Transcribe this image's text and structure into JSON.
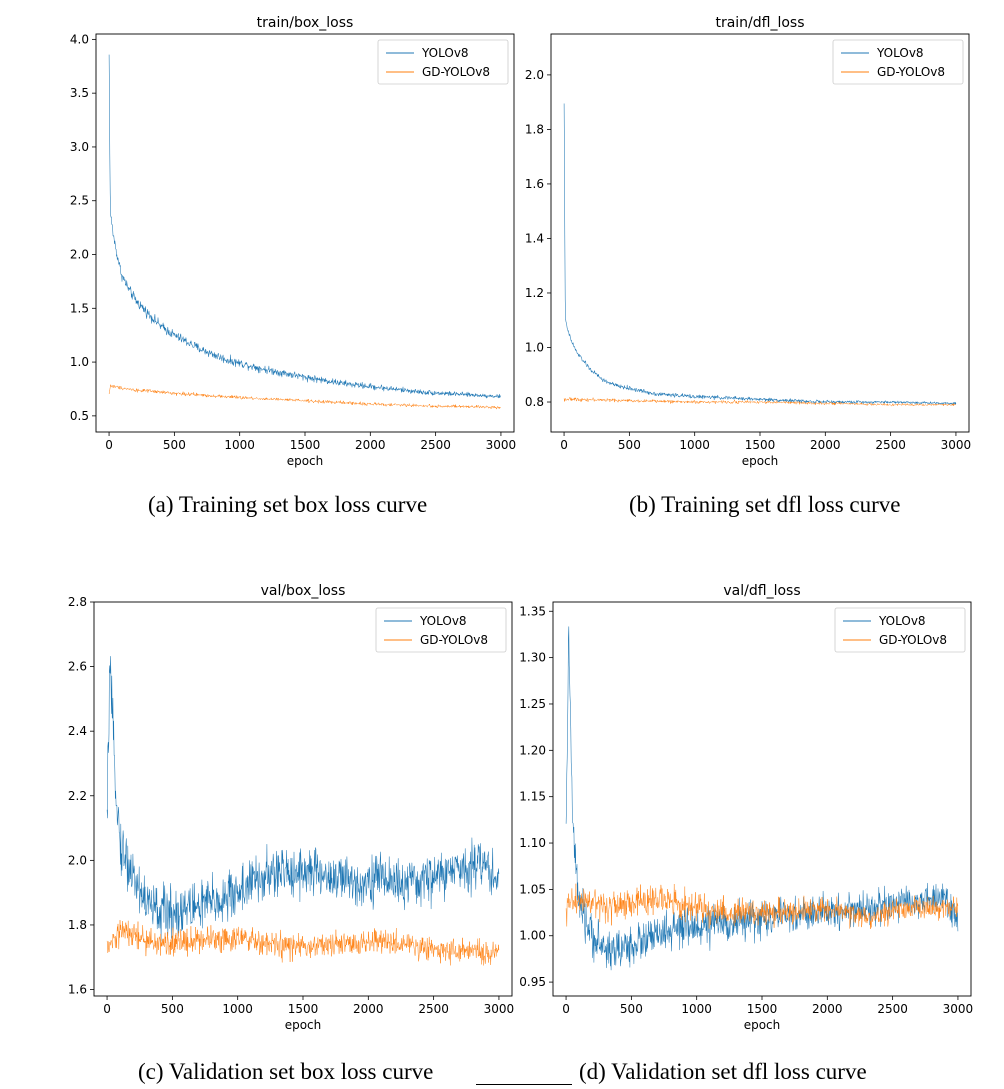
{
  "captions": {
    "a": "(a) Training set box loss curve",
    "b": "(b) Training set dfl loss curve",
    "c": "(c) Validation set box loss curve",
    "d": "(d) Validation set dfl loss curve"
  },
  "colors": {
    "yolov8": "#1f77b4",
    "gd_yolov8": "#ff7f0e"
  },
  "chart_data": [
    {
      "id": "a",
      "type": "line",
      "title": "train/box_loss",
      "xlabel": "epoch",
      "ylabel": "",
      "xlim": [
        -100,
        3100
      ],
      "ylim": [
        0.35,
        4.05
      ],
      "xticks": [
        0,
        500,
        1000,
        1500,
        2000,
        2500,
        3000
      ],
      "yticks": [
        0.5,
        1.0,
        1.5,
        2.0,
        2.5,
        3.0,
        3.5,
        4.0
      ],
      "ytick_decimals": 1,
      "legend": "top-right",
      "grid": false,
      "series": [
        {
          "name": "YOLOv8",
          "x": [
            0,
            10,
            30,
            60,
            100,
            150,
            200,
            300,
            400,
            500,
            700,
            900,
            1200,
            1500,
            1800,
            2100,
            2400,
            2700,
            3000
          ],
          "values": [
            3.85,
            2.4,
            2.2,
            2.0,
            1.8,
            1.68,
            1.58,
            1.45,
            1.33,
            1.25,
            1.12,
            1.02,
            0.93,
            0.86,
            0.8,
            0.76,
            0.72,
            0.7,
            0.68
          ]
        },
        {
          "name": "GD-YOLOv8",
          "x": [
            0,
            10,
            50,
            200,
            500,
            1000,
            1500,
            2000,
            2500,
            3000
          ],
          "values": [
            0.7,
            0.78,
            0.77,
            0.74,
            0.71,
            0.67,
            0.64,
            0.61,
            0.59,
            0.58
          ]
        }
      ]
    },
    {
      "id": "b",
      "type": "line",
      "title": "train/dfl_loss",
      "xlabel": "epoch",
      "ylabel": "",
      "xlim": [
        -100,
        3100
      ],
      "ylim": [
        0.69,
        2.15
      ],
      "xticks": [
        0,
        500,
        1000,
        1500,
        2000,
        2500,
        3000
      ],
      "yticks": [
        0.8,
        1.0,
        1.2,
        1.4,
        1.6,
        1.8,
        2.0
      ],
      "ytick_decimals": 1,
      "legend": "top-right",
      "grid": false,
      "series": [
        {
          "name": "YOLOv8",
          "x": [
            0,
            10,
            30,
            60,
            100,
            200,
            300,
            400,
            500,
            700,
            1000,
            1500,
            2000,
            2500,
            3000
          ],
          "values": [
            1.9,
            1.1,
            1.06,
            1.02,
            0.98,
            0.92,
            0.88,
            0.86,
            0.85,
            0.83,
            0.82,
            0.81,
            0.8,
            0.8,
            0.795
          ]
        },
        {
          "name": "GD-YOLOv8",
          "x": [
            0,
            100,
            500,
            1000,
            1500,
            2000,
            2500,
            3000
          ],
          "values": [
            0.81,
            0.81,
            0.805,
            0.8,
            0.8,
            0.795,
            0.79,
            0.79
          ]
        }
      ]
    },
    {
      "id": "c",
      "type": "line",
      "title": "val/box_loss",
      "xlabel": "epoch",
      "ylabel": "",
      "xlim": [
        -100,
        3100
      ],
      "ylim": [
        1.58,
        2.8
      ],
      "xticks": [
        0,
        500,
        1000,
        1500,
        2000,
        2500,
        3000
      ],
      "yticks": [
        1.6,
        1.8,
        2.0,
        2.2,
        2.4,
        2.6,
        2.8
      ],
      "ytick_decimals": 1,
      "legend": "top-right",
      "grid": false,
      "series": [
        {
          "name": "YOLOv8",
          "x": [
            0,
            20,
            50,
            100,
            200,
            300,
            400,
            500,
            700,
            900,
            1100,
            1300,
            1500,
            1700,
            1900,
            2100,
            2300,
            2500,
            2700,
            2850,
            3000
          ],
          "values": [
            2.1,
            2.6,
            2.35,
            2.05,
            1.95,
            1.87,
            1.84,
            1.84,
            1.86,
            1.88,
            1.93,
            1.96,
            1.97,
            1.95,
            1.93,
            1.95,
            1.92,
            1.95,
            1.97,
            2.0,
            1.94
          ]
        },
        {
          "name": "GD-YOLOv8",
          "x": [
            0,
            100,
            200,
            300,
            400,
            600,
            800,
            1000,
            1200,
            1500,
            1800,
            2100,
            2400,
            2700,
            3000
          ],
          "values": [
            1.72,
            1.78,
            1.77,
            1.75,
            1.74,
            1.75,
            1.76,
            1.76,
            1.74,
            1.73,
            1.74,
            1.75,
            1.73,
            1.72,
            1.71
          ]
        }
      ]
    },
    {
      "id": "d",
      "type": "line",
      "title": "val/dfl_loss",
      "xlabel": "epoch",
      "ylabel": "",
      "xlim": [
        -100,
        3100
      ],
      "ylim": [
        0.935,
        1.36
      ],
      "xticks": [
        0,
        500,
        1000,
        1500,
        2000,
        2500,
        3000
      ],
      "yticks": [
        0.95,
        1.0,
        1.05,
        1.1,
        1.15,
        1.2,
        1.25,
        1.3,
        1.35
      ],
      "ytick_decimals": 2,
      "legend": "top-right",
      "grid": false,
      "series": [
        {
          "name": "YOLOv8",
          "x": [
            0,
            20,
            50,
            100,
            200,
            300,
            400,
            600,
            800,
            1000,
            1300,
            1600,
            2000,
            2300,
            2600,
            2900,
            3000
          ],
          "values": [
            1.1,
            1.33,
            1.12,
            1.03,
            1.0,
            0.985,
            0.985,
            0.995,
            1.005,
            1.01,
            1.015,
            1.02,
            1.025,
            1.03,
            1.035,
            1.04,
            1.02
          ]
        },
        {
          "name": "GD-YOLOv8",
          "x": [
            0,
            100,
            300,
            500,
            700,
            1000,
            1300,
            1600,
            2000,
            2300,
            2600,
            3000
          ],
          "values": [
            1.03,
            1.04,
            1.03,
            1.035,
            1.04,
            1.03,
            1.025,
            1.025,
            1.03,
            1.02,
            1.03,
            1.03
          ]
        }
      ]
    }
  ]
}
